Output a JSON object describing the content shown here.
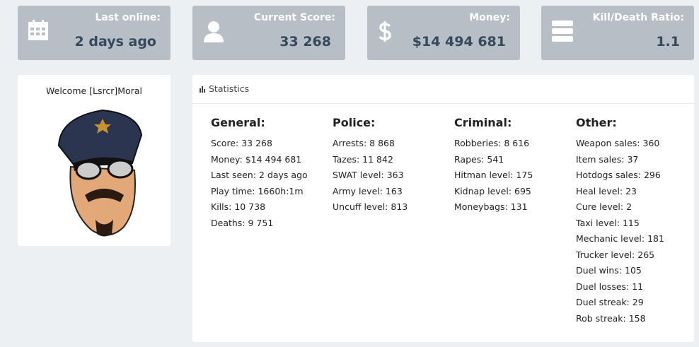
{
  "cards": [
    {
      "label": "Last online:",
      "value": "2 days ago"
    },
    {
      "label": "Current Score:",
      "value": "33 268"
    },
    {
      "label": "Money:",
      "value": "$14 494 681"
    },
    {
      "label": "Kill/Death Ratio:",
      "value": "1.1"
    }
  ],
  "profile": {
    "welcome": "Welcome [Lsrcr]Moral"
  },
  "statistics": {
    "title": "Statistics",
    "columns": [
      {
        "heading": "General:",
        "lines": [
          "Score: 33 268",
          "Money: $14 494 681",
          "Last seen: 2 days ago",
          "Play time: 1660h:1m",
          "Kills: 10 738",
          "Deaths: 9 751"
        ]
      },
      {
        "heading": "Police:",
        "lines": [
          "Arrests: 8 868",
          "Tazes: 11 842",
          "SWAT level: 363",
          "Army level: 163",
          "Uncuff level: 813"
        ]
      },
      {
        "heading": "Criminal:",
        "lines": [
          "Robberies: 8 616",
          "Rapes: 541",
          "Hitman level: 175",
          "Kidnap level: 695",
          "Moneybags: 131"
        ]
      },
      {
        "heading": "Other:",
        "lines": [
          "Weapon sales: 360",
          "Item sales: 37",
          "Hotdogs sales: 296",
          "Heal level: 23",
          "Cure level: 2",
          "Taxi level: 115",
          "Mechanic level: 181",
          "Trucker level: 265",
          "Duel wins: 105",
          "Duel losses: 11",
          "Duel streak: 29",
          "Rob streak: 158"
        ]
      }
    ]
  }
}
